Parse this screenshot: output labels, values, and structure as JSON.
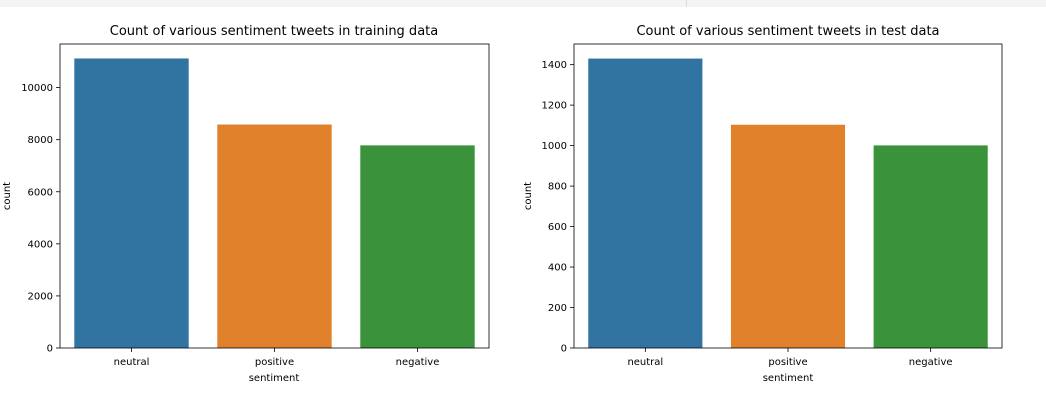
{
  "chart_data": [
    {
      "type": "bar",
      "title": "Count of various sentiment tweets in training data",
      "xlabel": "sentiment",
      "ylabel": "count",
      "categories": [
        "neutral",
        "positive",
        "negative"
      ],
      "values": [
        11118,
        8582,
        7781
      ],
      "ylim": [
        0,
        11674
      ],
      "yticks": [
        0,
        2000,
        4000,
        6000,
        8000,
        10000
      ],
      "colors": [
        "#3274a1",
        "#e1812c",
        "#3a923a"
      ],
      "grid": false
    },
    {
      "type": "bar",
      "title": "Count of various sentiment tweets in test data",
      "xlabel": "sentiment",
      "ylabel": "count",
      "categories": [
        "neutral",
        "positive",
        "negative"
      ],
      "values": [
        1430,
        1103,
        1001
      ],
      "ylim": [
        0,
        1502
      ],
      "yticks": [
        0,
        200,
        400,
        600,
        800,
        1000,
        1200,
        1400
      ],
      "colors": [
        "#3274a1",
        "#e1812c",
        "#3a923a"
      ],
      "grid": false
    }
  ]
}
